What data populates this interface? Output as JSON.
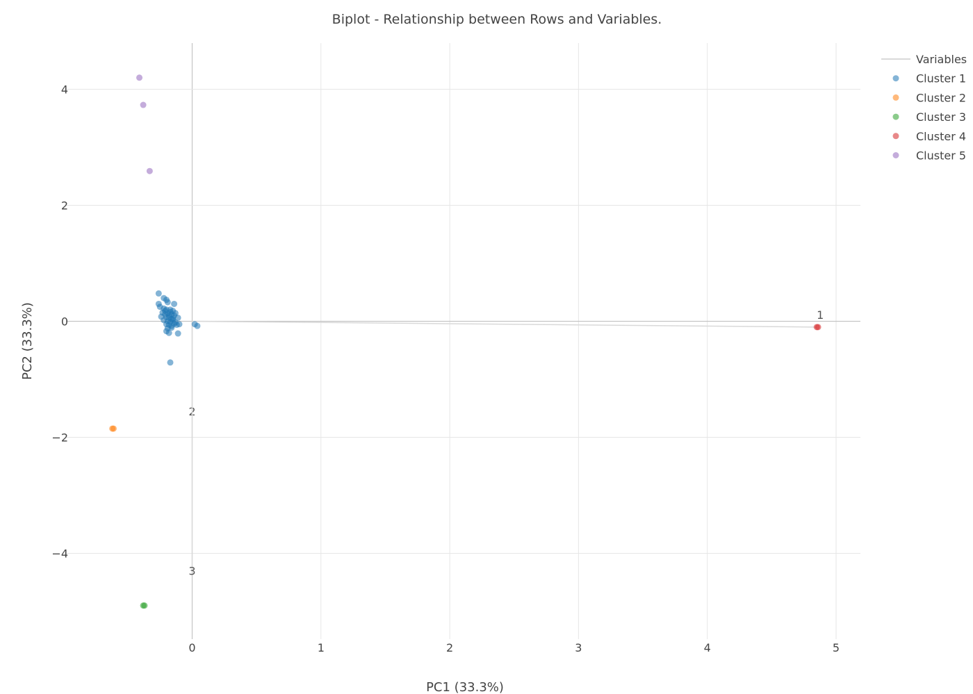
{
  "chart_data": {
    "type": "scatter",
    "title": "Biplot - Relationship between Rows and Variables.",
    "xlabel": "PC1 (33.3%)",
    "ylabel": "PC2 (33.3%)",
    "xlim": [
      -1.5,
      5.2
    ],
    "ylim": [
      -5.6,
      4.8
    ],
    "x_ticks": [
      0,
      1,
      2,
      3,
      4,
      5
    ],
    "y_ticks": [
      -4,
      -2,
      0,
      2,
      4
    ],
    "grid": true,
    "legend_position": "top-right",
    "variables": {
      "name": "Variables",
      "color": "#d9d9d9",
      "vectors": [
        {
          "label": "1",
          "x": 4.85,
          "y": -0.1
        },
        {
          "label": "2",
          "x": 0.0,
          "y": -1.55
        },
        {
          "label": "3",
          "x": 0.0,
          "y": -4.3
        }
      ]
    },
    "series": [
      {
        "name": "Cluster 1",
        "color": "#1f77b4",
        "points": [
          [
            -0.26,
            0.48
          ],
          [
            -0.22,
            0.4
          ],
          [
            -0.2,
            0.37
          ],
          [
            -0.26,
            0.3
          ],
          [
            -0.25,
            0.25
          ],
          [
            -0.19,
            0.33
          ],
          [
            -0.14,
            0.3
          ],
          [
            -0.22,
            0.22
          ],
          [
            -0.2,
            0.2
          ],
          [
            -0.17,
            0.2
          ],
          [
            -0.15,
            0.18
          ],
          [
            -0.23,
            0.15
          ],
          [
            -0.21,
            0.12
          ],
          [
            -0.19,
            0.14
          ],
          [
            -0.16,
            0.12
          ],
          [
            -0.14,
            0.1
          ],
          [
            -0.24,
            0.08
          ],
          [
            -0.2,
            0.07
          ],
          [
            -0.18,
            0.06
          ],
          [
            -0.15,
            0.05
          ],
          [
            -0.11,
            0.06
          ],
          [
            -0.22,
            0.02
          ],
          [
            -0.19,
            0.0
          ],
          [
            -0.17,
            -0.01
          ],
          [
            -0.15,
            0.02
          ],
          [
            -0.13,
            -0.02
          ],
          [
            -0.1,
            -0.05
          ],
          [
            -0.2,
            -0.05
          ],
          [
            -0.18,
            -0.06
          ],
          [
            -0.16,
            -0.08
          ],
          [
            -0.12,
            -0.06
          ],
          [
            -0.19,
            -0.12
          ],
          [
            -0.16,
            -0.11
          ],
          [
            -0.2,
            -0.17
          ],
          [
            -0.18,
            -0.2
          ],
          [
            -0.11,
            -0.21
          ],
          [
            -0.21,
            0.18
          ],
          [
            -0.17,
            0.16
          ],
          [
            -0.13,
            0.14
          ],
          [
            -0.18,
            0.1
          ],
          [
            -0.16,
            0.04
          ],
          [
            -0.14,
            -0.04
          ],
          [
            0.02,
            -0.05
          ],
          [
            0.04,
            -0.08
          ],
          [
            -0.17,
            -0.71
          ]
        ]
      },
      {
        "name": "Cluster 2",
        "color": "#ff7f0e",
        "points": [
          [
            -0.61,
            -1.85
          ],
          [
            -0.62,
            -1.85
          ]
        ]
      },
      {
        "name": "Cluster 3",
        "color": "#2ca02c",
        "points": [
          [
            -0.37,
            -4.9
          ],
          [
            -0.38,
            -4.9
          ]
        ]
      },
      {
        "name": "Cluster 4",
        "color": "#d62728",
        "points": [
          [
            4.85,
            -0.1
          ],
          [
            4.86,
            -0.1
          ]
        ]
      },
      {
        "name": "Cluster 5",
        "color": "#9467bd",
        "points": [
          [
            -0.41,
            4.2
          ],
          [
            -0.38,
            3.73
          ],
          [
            -0.33,
            2.59
          ]
        ]
      }
    ]
  }
}
